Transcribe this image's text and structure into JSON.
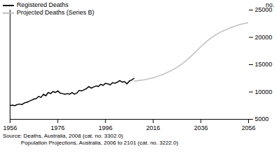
{
  "chart_data": {
    "type": "line",
    "y_label": "no.",
    "caption": [
      "Source: Deaths, Australia, 2008 (cat. no. 3302.0)",
      "Population Projections, Australia, 2006 to 2101 (cat. no. 3222.0)"
    ],
    "xlim": [
      1956,
      2056
    ],
    "xticks": [
      1956,
      1976,
      1996,
      2016,
      2036,
      2056
    ],
    "ylim": [
      5000,
      25000
    ],
    "yticks": [
      5000,
      10000,
      15000,
      20000,
      25000
    ],
    "grid": false,
    "legend": "top-left",
    "series": [
      {
        "name": "Registered Deaths",
        "color": "#000000",
        "x": [
          1956,
          1957,
          1958,
          1959,
          1960,
          1961,
          1962,
          1963,
          1964,
          1965,
          1966,
          1967,
          1968,
          1969,
          1970,
          1971,
          1972,
          1973,
          1974,
          1975,
          1976,
          1977,
          1978,
          1979,
          1980,
          1981,
          1982,
          1983,
          1984,
          1985,
          1986,
          1987,
          1988,
          1989,
          1990,
          1991,
          1992,
          1993,
          1994,
          1995,
          1996,
          1997,
          1998,
          1999,
          2000,
          2001,
          2002,
          2003,
          2004,
          2005,
          2006,
          2007,
          2008
        ],
        "values": [
          7500,
          7600,
          7500,
          7700,
          7800,
          7700,
          8000,
          8100,
          8300,
          8500,
          8700,
          8800,
          9200,
          9000,
          9600,
          9300,
          9900,
          9700,
          10100,
          9900,
          10200,
          9800,
          9700,
          9600,
          9700,
          9600,
          9900,
          9600,
          9800,
          10300,
          10200,
          10400,
          10600,
          11000,
          10700,
          10900,
          11100,
          11000,
          11400,
          11200,
          11600,
          11500,
          11300,
          11700,
          11600,
          11800,
          12100,
          11800,
          11900,
          11500,
          12000,
          12200,
          12500
        ]
      },
      {
        "name": "Projected Deaths (Series B)",
        "color": "#bfbfbf",
        "x": [
          2008,
          2010,
          2012,
          2014,
          2016,
          2018,
          2020,
          2022,
          2024,
          2026,
          2028,
          2030,
          2032,
          2034,
          2036,
          2038,
          2040,
          2042,
          2044,
          2046,
          2048,
          2050,
          2052,
          2054,
          2056
        ],
        "values": [
          12000,
          12100,
          12200,
          12400,
          12600,
          12900,
          13200,
          13600,
          14000,
          14500,
          15100,
          15800,
          16600,
          17400,
          18300,
          19100,
          19800,
          20400,
          20900,
          21300,
          21700,
          22000,
          22300,
          22500,
          22700
        ]
      }
    ]
  }
}
